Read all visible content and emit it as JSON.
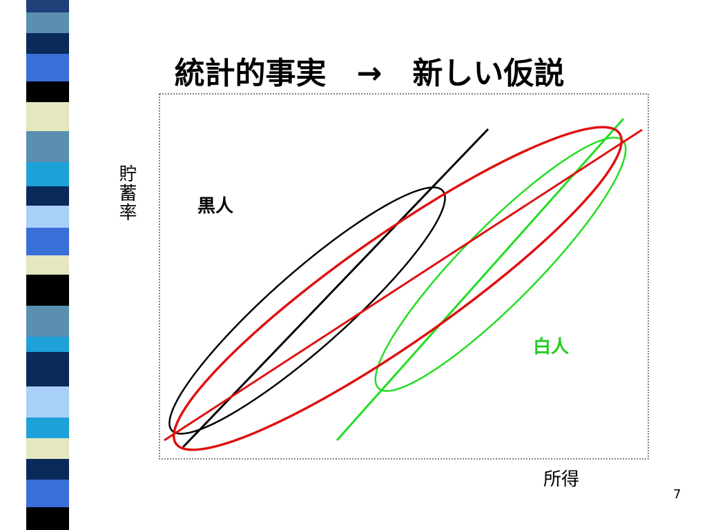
{
  "title": "統計的事実　→　新しい仮説",
  "diagram": {
    "y_label": "貯蓄率",
    "x_label": "所得",
    "groups": [
      {
        "label": "黒人"
      },
      {
        "label": "白人"
      }
    ]
  },
  "page_number": "7"
}
